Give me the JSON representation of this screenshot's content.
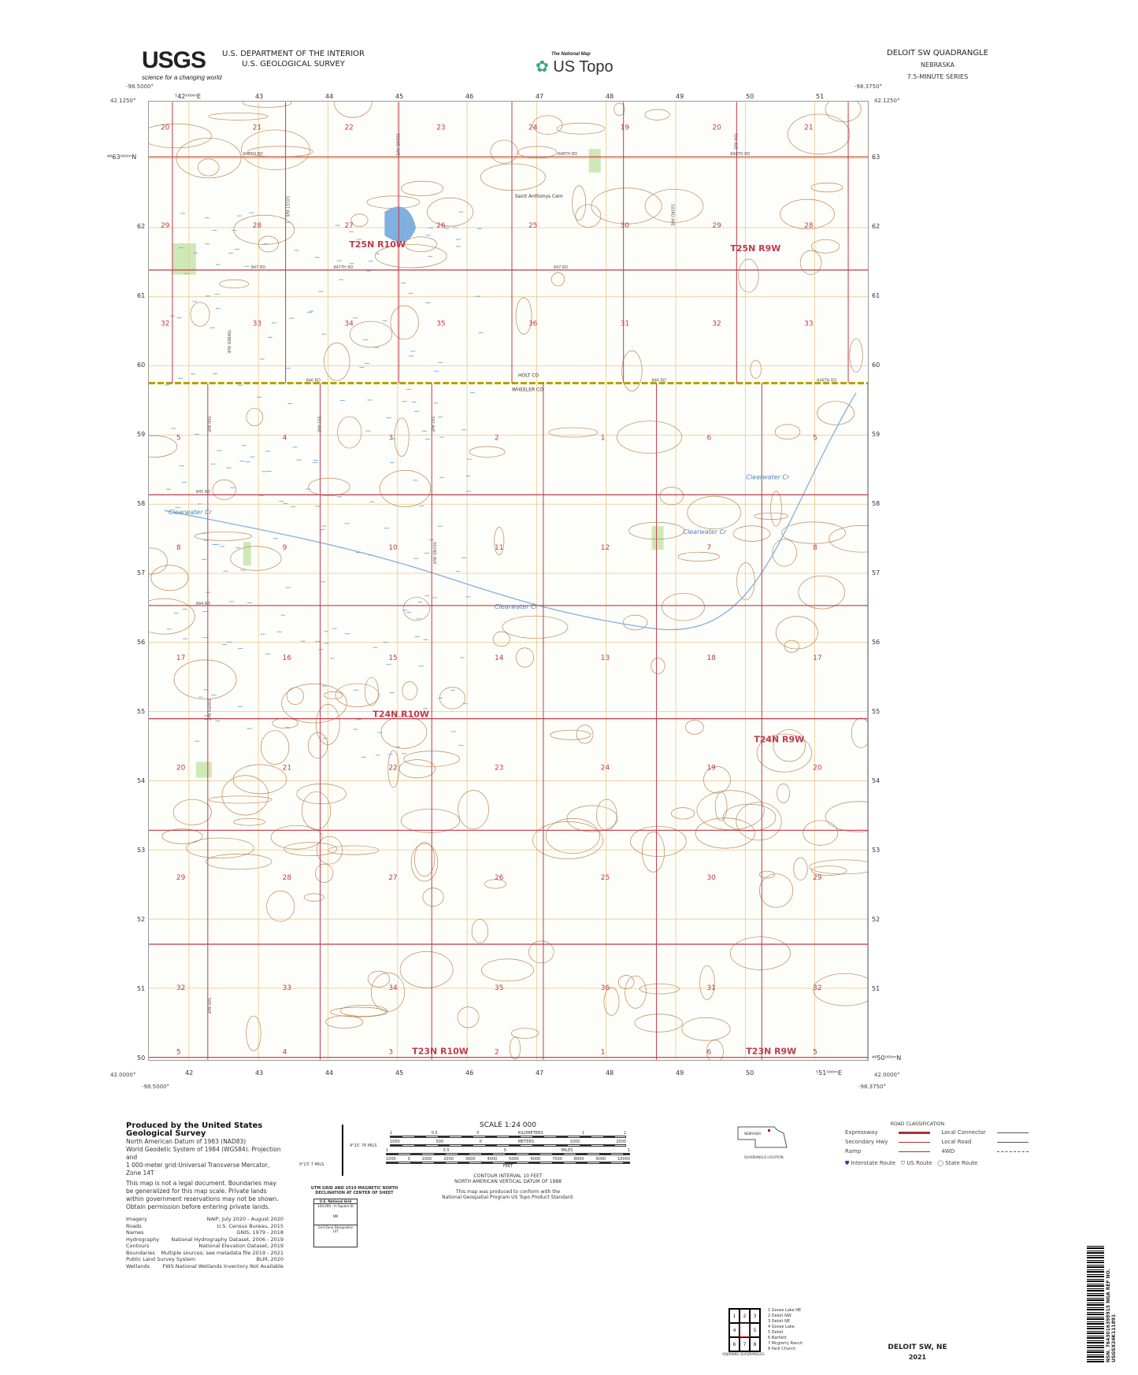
{
  "header": {
    "usgs_logo": "USGS",
    "usgs_tagline": "science for a changing world",
    "dept_line1": "U.S. DEPARTMENT OF THE INTERIOR",
    "dept_line2": "U.S. GEOLOGICAL SURVEY",
    "national_map": "The National Map",
    "us_topo": "US Topo",
    "quad_title": "DELOIT SW QUADRANGLE",
    "state": "NEBRASKA",
    "series": "7.5-MINUTE SERIES"
  },
  "corners": {
    "nw_lon": "-98.5000°",
    "nw_lat": "42.1250°",
    "ne_lon": "-98.3750°",
    "ne_lat": "42.1250°",
    "sw_lat": "42.0000°",
    "sw_lon": "-98.5000°",
    "se_lat": "42.0000°",
    "se_lon": "-98.3750°"
  },
  "grid": {
    "eastings_top": [
      "⁵42⁰⁰⁰ᵐE",
      "43",
      "44",
      "45",
      "46",
      "47",
      "48",
      "49",
      "50",
      "51"
    ],
    "eastings_bottom": [
      "42",
      "43",
      "44",
      "45",
      "46",
      "47",
      "48",
      "49",
      "50",
      "⁵51⁰⁰⁰ᵐE"
    ],
    "northings_left": [
      "⁴⁶63⁰⁰⁰ᵐN",
      "62",
      "61",
      "60",
      "59",
      "58",
      "57",
      "56",
      "55",
      "54",
      "53",
      "52",
      "51",
      "50"
    ],
    "northings_right": [
      "63",
      "62",
      "61",
      "60",
      "59",
      "58",
      "57",
      "56",
      "55",
      "54",
      "53",
      "52",
      "51",
      "⁴⁶50⁰⁰⁰ᵐN"
    ]
  },
  "map": {
    "sections_t25n": [
      [
        "20",
        "21",
        "22",
        "23",
        "24",
        "19",
        "20",
        "21"
      ],
      [
        "29",
        "28",
        "27",
        "26",
        "25",
        "30",
        "29",
        "28"
      ],
      [
        "32",
        "33",
        "34",
        "35",
        "36",
        "31",
        "32",
        "33"
      ]
    ],
    "sections_t24n": [
      [
        "5",
        "4",
        "3",
        "2",
        "1",
        "6",
        "5"
      ],
      [
        "8",
        "9",
        "10",
        "11",
        "12",
        "7",
        "8"
      ],
      [
        "17",
        "16",
        "15",
        "14",
        "13",
        "18",
        "17"
      ],
      [
        "20",
        "21",
        "22",
        "23",
        "24",
        "19",
        "20"
      ],
      [
        "29",
        "28",
        "27",
        "26",
        "25",
        "30",
        "29"
      ],
      [
        "32",
        "33",
        "34",
        "35",
        "36",
        "31",
        "32"
      ],
      [
        "5",
        "4",
        "3",
        "2",
        "1",
        "6",
        "5"
      ]
    ],
    "townships": [
      "T25N R10W",
      "T25N R9W",
      "T24N R10W",
      "T24N R9W",
      "T23N R10W",
      "T23N R9W"
    ],
    "roads": [
      "848TH RD",
      "848TH RD",
      "848TH RD",
      "847 RD",
      "847TH RD",
      "847 RD",
      "846 RD",
      "846 RD",
      "846TH RD",
      "845 RD",
      "844 RD",
      "501ST AVE",
      "TIMBER AVE",
      "502ND AVE",
      "503RD AVE",
      "504 AVE",
      "500 AVE",
      "501 AVE",
      "502 AVE",
      "502ND AVE",
      "500TH AVE",
      "500 AVE"
    ],
    "places": [
      "Saint Anthonys Cem",
      "HOLT CO",
      "WHEELER CO",
      "Clearwater Cr",
      "Clearwater Cr",
      "Clearwater Cr",
      "Clearwater Cr"
    ],
    "colors": {
      "section_line": "#c0394b",
      "county_line": "#b8a000",
      "contour": "#b98a5a",
      "water": "#7fb0e0",
      "grid": "#e8c98a",
      "veg": "#cfe8b8"
    }
  },
  "footer": {
    "produced": "Produced by the United States Geological Survey",
    "datum_lines": [
      "North American Datum of 1983 (NAD83)",
      "World Geodetic System of 1984 (WGS84). Projection and",
      "1 000-meter grid:Universal Transverse Mercator, Zone 14T"
    ],
    "legal": "This map is not a legal document. Boundaries may be generalized for this map scale. Private lands within government reservations may not be shown. Obtain permission before entering private lands.",
    "sources": [
      [
        "Imagery",
        "NAIP, July 2020 - August 2020"
      ],
      [
        "Roads",
        "U.S. Census Bureau, 2015"
      ],
      [
        "Names",
        "GNIS, 1979 - 2018"
      ],
      [
        "Hydrography",
        "National Hydrography Dataset, 2006 - 2019"
      ],
      [
        "Contours",
        "National Elevation Dataset, 2019"
      ],
      [
        "Boundaries",
        "Multiple sources; see metadata file 2019 - 2021"
      ],
      [
        "Public Land Survey System",
        "BLM, 2020"
      ],
      [
        "Wetlands",
        "FWS National Wetlands Inventory Not Available"
      ]
    ],
    "declination": {
      "mn": "MN",
      "gn": "GN",
      "east": "4°15′ 76 MILS",
      "west": "0°23′ 7 MILS",
      "caption": "UTM GRID AND 2019 MAGNETIC NORTH DECLINATION AT CENTER OF SHEET"
    },
    "usng": {
      "title": "U.S. National Grid",
      "sq_label": "100,000 - m Square ID",
      "sq": "NM",
      "gzd_label": "Grid Zone Designation",
      "gzd": "14T"
    },
    "scale": {
      "title": "SCALE 1:24 000",
      "km": [
        "1",
        "0.5",
        "0",
        "KILOMETERS",
        "1",
        "2"
      ],
      "m": [
        "1000",
        "500",
        "0",
        "METERS",
        "1000",
        "2000"
      ],
      "mi": [
        "1",
        "0.5",
        "0",
        "MILES",
        "1"
      ],
      "ft": [
        "1000",
        "0",
        "1000",
        "2000",
        "3000",
        "4000",
        "5000",
        "6000",
        "7000",
        "8000",
        "9000",
        "10000"
      ],
      "ft_label": "FEET"
    },
    "contour": "CONTOUR INTERVAL 10 FEET",
    "vdatum": "NORTH AMERICAN VERTICAL DATUM OF 1988",
    "conform1": "This map was produced to conform with the",
    "conform2": "National Geospatial Program US Topo Product Standard.",
    "location_state": "NEBRASKA",
    "location_caption": "QUADRANGLE LOCATION",
    "adjoining": [
      "1 Goose Lake NE",
      "2 Deloit NW",
      "3 Deloit NE",
      "4 Goose Lake",
      "5 Deloit",
      "6 Bartlett",
      "7 Mcgrerry Ranch",
      "8 Park Church"
    ],
    "adjoining_caption": "ADJOINING QUADRANGLES",
    "road_class": {
      "title": "ROAD CLASSIFICATION",
      "left": [
        "Expressway",
        "Secondary Hwy",
        "Ramp"
      ],
      "right": [
        "Local Connector",
        "Local Road",
        "4WD"
      ],
      "shields": [
        "Interstate Route",
        "US Route",
        "State Route"
      ]
    },
    "sheet_name": "DELOIT SW, NE",
    "year": "2021",
    "barcode_text": "NSN. 7643016398915 NGA REF NO. USGSX24K111891"
  }
}
